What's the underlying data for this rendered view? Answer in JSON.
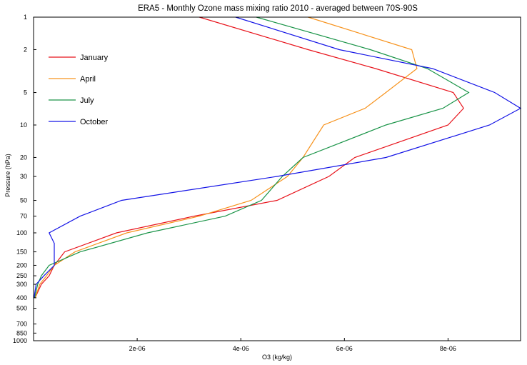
{
  "chart_data": {
    "type": "line",
    "title": "ERA5 - Monthly Ozone mass mixing ratio 2010 - averaged between 70S-90S",
    "xlabel": "O3 (kg/kg)",
    "ylabel": "Pressure (hPa)",
    "xlim": [
      0,
      9.4e-06
    ],
    "ylim": [
      1000,
      1
    ],
    "y_scale": "log",
    "y_inverted": true,
    "x_ticks": [
      {
        "value": 2e-06,
        "label": "2e-06"
      },
      {
        "value": 4e-06,
        "label": "4e-06"
      },
      {
        "value": 6e-06,
        "label": "6e-06"
      },
      {
        "value": 8e-06,
        "label": "8e-06"
      }
    ],
    "y_ticks": [
      {
        "value": 1,
        "label": "1"
      },
      {
        "value": 2,
        "label": "2"
      },
      {
        "value": 5,
        "label": "5"
      },
      {
        "value": 10,
        "label": "10"
      },
      {
        "value": 20,
        "label": "20"
      },
      {
        "value": 30,
        "label": "30"
      },
      {
        "value": 50,
        "label": "50"
      },
      {
        "value": 70,
        "label": "70"
      },
      {
        "value": 100,
        "label": "100"
      },
      {
        "value": 150,
        "label": "150"
      },
      {
        "value": 200,
        "label": "200"
      },
      {
        "value": 250,
        "label": "250"
      },
      {
        "value": 300,
        "label": "300"
      },
      {
        "value": 400,
        "label": "400"
      },
      {
        "value": 500,
        "label": "500"
      },
      {
        "value": 700,
        "label": "700"
      },
      {
        "value": 850,
        "label": "850"
      },
      {
        "value": 1000,
        "label": "1000"
      }
    ],
    "grid": false,
    "legend_position": "top-left",
    "series": [
      {
        "name": "January",
        "color": "#e8141c",
        "points": [
          {
            "p": 1,
            "x": 3.2e-06
          },
          {
            "p": 2,
            "x": 5.3e-06
          },
          {
            "p": 3,
            "x": 6.6e-06
          },
          {
            "p": 5,
            "x": 8.1e-06
          },
          {
            "p": 7,
            "x": 8.3e-06
          },
          {
            "p": 10,
            "x": 8e-06
          },
          {
            "p": 20,
            "x": 6.2e-06
          },
          {
            "p": 30,
            "x": 5.7e-06
          },
          {
            "p": 50,
            "x": 4.7e-06
          },
          {
            "p": 70,
            "x": 3.1e-06
          },
          {
            "p": 100,
            "x": 1.6e-06
          },
          {
            "p": 150,
            "x": 6e-07
          },
          {
            "p": 200,
            "x": 4e-07
          },
          {
            "p": 250,
            "x": 3e-07
          },
          {
            "p": 300,
            "x": 1.5e-07
          },
          {
            "p": 400,
            "x": 3e-08
          }
        ]
      },
      {
        "name": "April",
        "color": "#f7931e",
        "points": [
          {
            "p": 1,
            "x": 5.3e-06
          },
          {
            "p": 2,
            "x": 7.3e-06
          },
          {
            "p": 3,
            "x": 7.4e-06
          },
          {
            "p": 5,
            "x": 6.8e-06
          },
          {
            "p": 7,
            "x": 6.4e-06
          },
          {
            "p": 10,
            "x": 5.6e-06
          },
          {
            "p": 20,
            "x": 5.2e-06
          },
          {
            "p": 30,
            "x": 4.9e-06
          },
          {
            "p": 50,
            "x": 4.2e-06
          },
          {
            "p": 70,
            "x": 3.2e-06
          },
          {
            "p": 100,
            "x": 1.8e-06
          },
          {
            "p": 150,
            "x": 8e-07
          },
          {
            "p": 200,
            "x": 4e-07
          },
          {
            "p": 250,
            "x": 2.5e-07
          },
          {
            "p": 300,
            "x": 1.2e-07
          },
          {
            "p": 400,
            "x": 3e-08
          }
        ]
      },
      {
        "name": "July",
        "color": "#1a9448",
        "points": [
          {
            "p": 1,
            "x": 4.3e-06
          },
          {
            "p": 2,
            "x": 6.5e-06
          },
          {
            "p": 3,
            "x": 7.6e-06
          },
          {
            "p": 5,
            "x": 8.4e-06
          },
          {
            "p": 7,
            "x": 7.9e-06
          },
          {
            "p": 10,
            "x": 6.8e-06
          },
          {
            "p": 20,
            "x": 5.2e-06
          },
          {
            "p": 30,
            "x": 4.8e-06
          },
          {
            "p": 50,
            "x": 4.4e-06
          },
          {
            "p": 70,
            "x": 3.7e-06
          },
          {
            "p": 100,
            "x": 2.2e-06
          },
          {
            "p": 150,
            "x": 9e-07
          },
          {
            "p": 200,
            "x": 3e-07
          },
          {
            "p": 250,
            "x": 1.5e-07
          },
          {
            "p": 300,
            "x": 8e-08
          },
          {
            "p": 400,
            "x": 2e-08
          }
        ]
      },
      {
        "name": "October",
        "color": "#1414e6",
        "points": [
          {
            "p": 1,
            "x": 3.9e-06
          },
          {
            "p": 2,
            "x": 5.9e-06
          },
          {
            "p": 3,
            "x": 7.7e-06
          },
          {
            "p": 5,
            "x": 8.9e-06
          },
          {
            "p": 7,
            "x": 9.4e-06
          },
          {
            "p": 10,
            "x": 8.8e-06
          },
          {
            "p": 20,
            "x": 6.8e-06
          },
          {
            "p": 30,
            "x": 4.7e-06
          },
          {
            "p": 50,
            "x": 1.7e-06
          },
          {
            "p": 70,
            "x": 9e-07
          },
          {
            "p": 100,
            "x": 3e-07
          },
          {
            "p": 125,
            "x": 4e-07
          },
          {
            "p": 200,
            "x": 4e-07
          },
          {
            "p": 250,
            "x": 2e-07
          },
          {
            "p": 300,
            "x": 5e-08
          },
          {
            "p": 400,
            "x": 1e-08
          }
        ]
      }
    ]
  }
}
